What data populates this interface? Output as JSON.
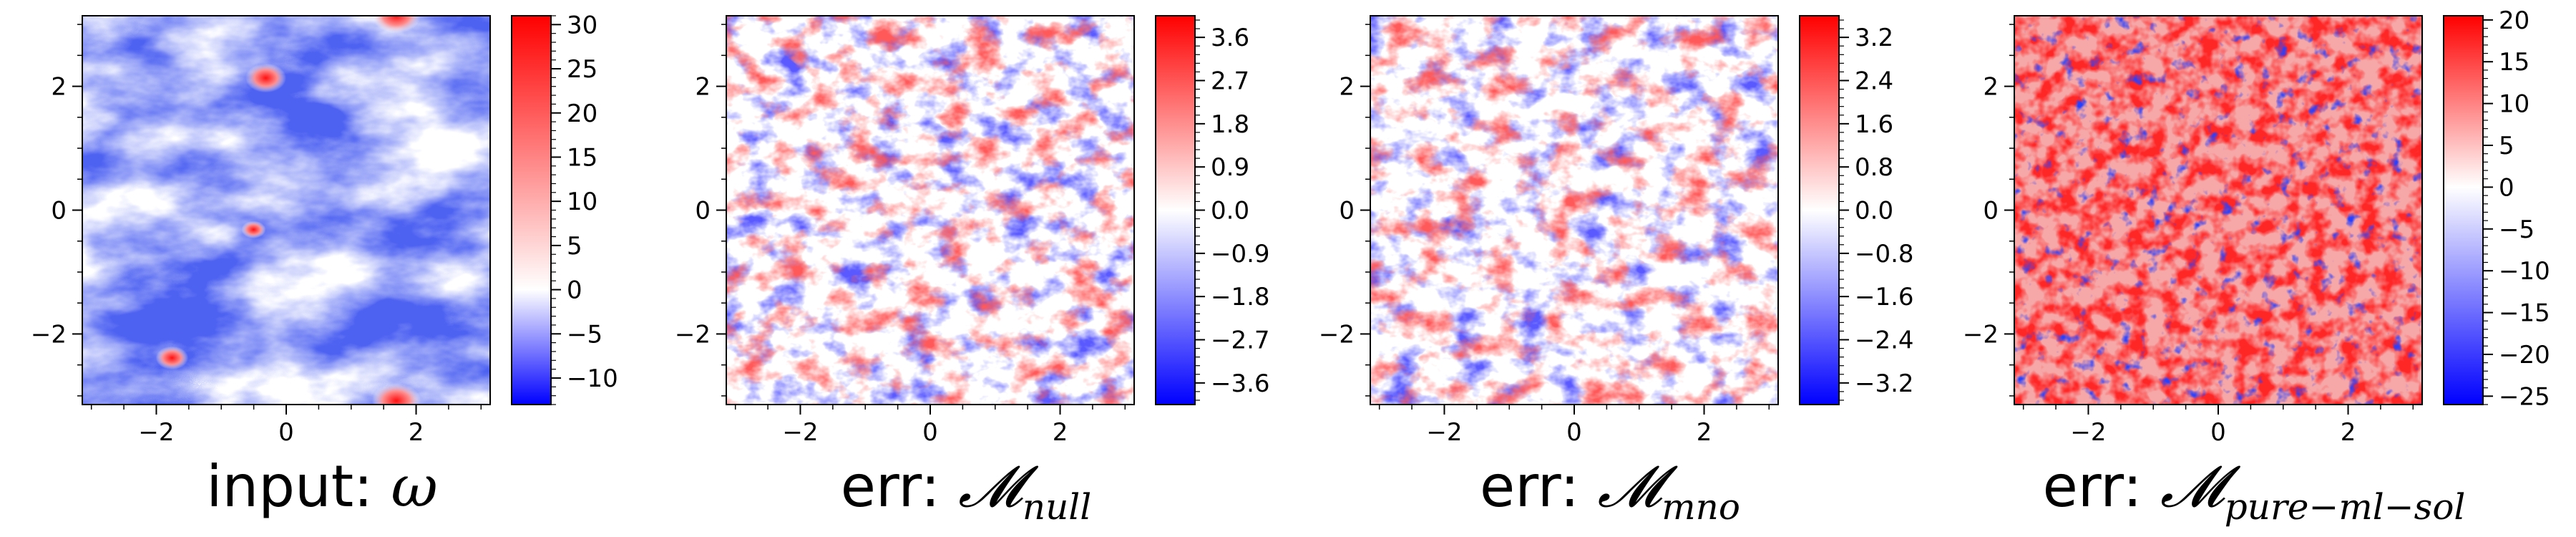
{
  "colors": {
    "blue": "#0000ff",
    "white": "#ffffff",
    "red": "#ff0000"
  },
  "chart_data": [
    {
      "type": "heatmap",
      "panel_title": "input: ω",
      "title_text": "input: ",
      "title_symbol": "ω",
      "title_subscript": "",
      "field": "vorticity",
      "x_ticks": [
        -2,
        0,
        2
      ],
      "y_ticks": [
        -2,
        0,
        2
      ],
      "xlim": [
        -3.14,
        3.14
      ],
      "ylim": [
        -3.14,
        3.14
      ],
      "colorbar": {
        "range": [
          -13,
          31
        ],
        "ticks": [
          "−10",
          "−5",
          "0",
          "5",
          "10",
          "15",
          "20",
          "25",
          "30"
        ],
        "tick_values": [
          -10,
          -5,
          0,
          5,
          10,
          15,
          20,
          25,
          30
        ]
      }
    },
    {
      "type": "heatmap",
      "panel_title": "err: 𝓜 null",
      "title_text": "err: ",
      "title_symbol": "𝓜",
      "title_subscript": "null",
      "field": "error",
      "x_ticks": [
        -2,
        0,
        2
      ],
      "y_ticks": [
        -2,
        0,
        2
      ],
      "xlim": [
        -3.14,
        3.14
      ],
      "ylim": [
        -3.14,
        3.14
      ],
      "colorbar": {
        "range": [
          -4.05,
          4.05
        ],
        "ticks": [
          "−3.6",
          "−2.7",
          "−1.8",
          "−0.9",
          "0.0",
          "0.9",
          "1.8",
          "2.7",
          "3.6"
        ],
        "tick_values": [
          -3.6,
          -2.7,
          -1.8,
          -0.9,
          0.0,
          0.9,
          1.8,
          2.7,
          3.6
        ]
      }
    },
    {
      "type": "heatmap",
      "panel_title": "err: 𝓜 mno",
      "title_text": "err: ",
      "title_symbol": "𝓜",
      "title_subscript": "mno",
      "field": "error",
      "x_ticks": [
        -2,
        0,
        2
      ],
      "y_ticks": [
        -2,
        0,
        2
      ],
      "xlim": [
        -3.14,
        3.14
      ],
      "ylim": [
        -3.14,
        3.14
      ],
      "colorbar": {
        "range": [
          -3.6,
          3.6
        ],
        "ticks": [
          "−3.2",
          "−2.4",
          "−1.6",
          "−0.8",
          "0.0",
          "0.8",
          "1.6",
          "2.4",
          "3.2"
        ],
        "tick_values": [
          -3.2,
          -2.4,
          -1.6,
          -0.8,
          0.0,
          0.8,
          1.6,
          2.4,
          3.2
        ]
      }
    },
    {
      "type": "heatmap",
      "panel_title": "err: 𝓜 pure−ml−sol",
      "title_text": "err: ",
      "title_symbol": "𝓜",
      "title_subscript": "pure−ml−sol",
      "field": "error",
      "x_ticks": [
        -2,
        0,
        2
      ],
      "y_ticks": [
        -2,
        0,
        2
      ],
      "xlim": [
        -3.14,
        3.14
      ],
      "ylim": [
        -3.14,
        3.14
      ],
      "colorbar": {
        "range": [
          -26,
          20.5
        ],
        "ticks": [
          "−25",
          "−20",
          "−15",
          "−10",
          "−5",
          "0",
          "5",
          "10",
          "15",
          "20"
        ],
        "tick_values": [
          -25,
          -20,
          -15,
          -10,
          -5,
          0,
          5,
          10,
          15,
          20
        ]
      }
    }
  ]
}
